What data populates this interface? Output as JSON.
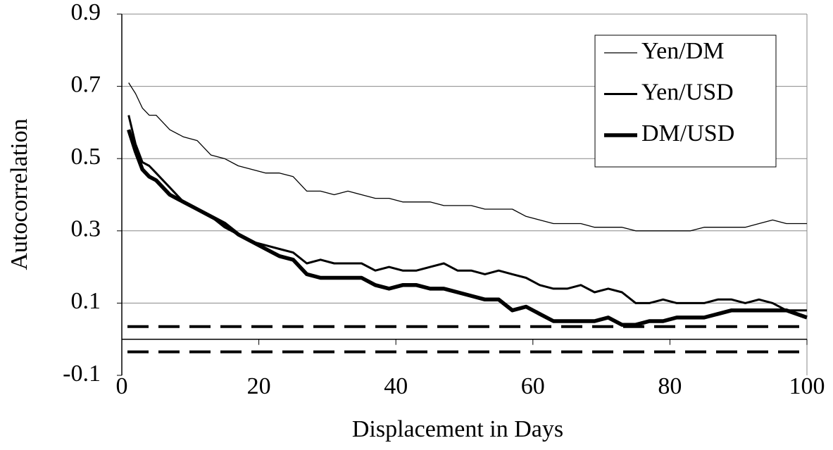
{
  "chart_data": {
    "type": "line",
    "xlabel": "Displacement in Days",
    "ylabel": "Autocorrelation",
    "x": [
      1,
      2,
      3,
      4,
      5,
      7,
      9,
      11,
      13,
      15,
      17,
      19,
      21,
      23,
      25,
      27,
      29,
      31,
      33,
      35,
      37,
      39,
      41,
      43,
      45,
      47,
      49,
      51,
      53,
      55,
      57,
      59,
      61,
      63,
      65,
      67,
      69,
      71,
      73,
      75,
      77,
      79,
      81,
      83,
      85,
      87,
      89,
      91,
      93,
      95,
      97,
      100
    ],
    "series": [
      {
        "name": "Yen/DM",
        "color": "#000000",
        "width": 1.3,
        "values": [
          0.71,
          0.68,
          0.64,
          0.62,
          0.62,
          0.58,
          0.56,
          0.55,
          0.51,
          0.5,
          0.48,
          0.47,
          0.46,
          0.46,
          0.45,
          0.41,
          0.41,
          0.4,
          0.41,
          0.4,
          0.39,
          0.39,
          0.38,
          0.38,
          0.38,
          0.37,
          0.37,
          0.37,
          0.36,
          0.36,
          0.36,
          0.34,
          0.33,
          0.32,
          0.32,
          0.32,
          0.31,
          0.31,
          0.31,
          0.3,
          0.3,
          0.3,
          0.3,
          0.3,
          0.31,
          0.31,
          0.31,
          0.31,
          0.32,
          0.33,
          0.32,
          0.32
        ]
      },
      {
        "name": "Yen/USD",
        "color": "#000000",
        "width": 3,
        "values": [
          0.62,
          0.54,
          0.49,
          0.48,
          0.46,
          0.42,
          0.38,
          0.36,
          0.34,
          0.31,
          0.29,
          0.27,
          0.26,
          0.25,
          0.24,
          0.21,
          0.22,
          0.21,
          0.21,
          0.21,
          0.19,
          0.2,
          0.19,
          0.19,
          0.2,
          0.21,
          0.19,
          0.19,
          0.18,
          0.19,
          0.18,
          0.17,
          0.15,
          0.14,
          0.14,
          0.15,
          0.13,
          0.14,
          0.13,
          0.1,
          0.1,
          0.11,
          0.1,
          0.1,
          0.1,
          0.11,
          0.11,
          0.1,
          0.11,
          0.1,
          0.08,
          0.08
        ]
      },
      {
        "name": "DM/USD",
        "color": "#000000",
        "width": 5.5,
        "values": [
          0.58,
          0.52,
          0.47,
          0.45,
          0.44,
          0.4,
          0.38,
          0.36,
          0.34,
          0.32,
          0.29,
          0.27,
          0.25,
          0.23,
          0.22,
          0.18,
          0.17,
          0.17,
          0.17,
          0.17,
          0.15,
          0.14,
          0.15,
          0.15,
          0.14,
          0.14,
          0.13,
          0.12,
          0.11,
          0.11,
          0.08,
          0.09,
          0.07,
          0.05,
          0.05,
          0.05,
          0.05,
          0.06,
          0.04,
          0.04,
          0.05,
          0.05,
          0.06,
          0.06,
          0.06,
          0.07,
          0.08,
          0.08,
          0.08,
          0.08,
          0.08,
          0.06
        ]
      }
    ],
    "hlines": [
      0.035,
      -0.035
    ],
    "xlim": [
      0,
      100
    ],
    "xticks": [
      0,
      20,
      40,
      60,
      80,
      100
    ],
    "ylim": [
      -0.1,
      0.9
    ],
    "yticks": [
      -0.1,
      0.1,
      0.3,
      0.5,
      0.7,
      0.9
    ],
    "grid": true,
    "legend": "upper right"
  }
}
